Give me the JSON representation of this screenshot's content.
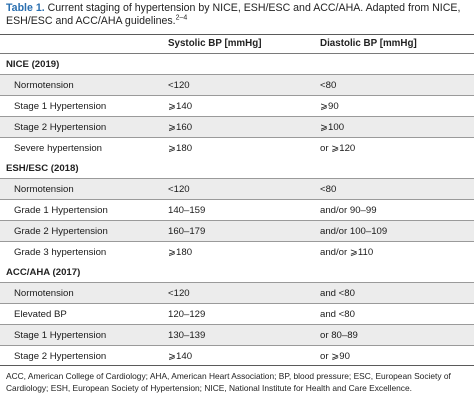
{
  "caption": {
    "label": "Table 1.",
    "text": "Current staging of hypertension by NICE, ESH/ESC and ACC/AHA. Adapted from NICE, ESH/ESC and ACC/AHA guidelines.",
    "refs": "2–4"
  },
  "columns": [
    "",
    "Systolic BP [mmHg]",
    "Diastolic BP [mmHg]"
  ],
  "groups": [
    {
      "title": "NICE (2019)",
      "rows": [
        {
          "stage": "Normotension",
          "systolic": "<120",
          "diastolic": "<80"
        },
        {
          "stage": "Stage 1 Hypertension",
          "systolic": "⩾140",
          "diastolic": "⩾90"
        },
        {
          "stage": "Stage 2 Hypertension",
          "systolic": "⩾160",
          "diastolic": "⩾100"
        },
        {
          "stage": "Severe hypertension",
          "systolic": "⩾180",
          "diastolic": "or ⩾120"
        }
      ]
    },
    {
      "title": "ESH/ESC (2018)",
      "rows": [
        {
          "stage": "Normotension",
          "systolic": "<120",
          "diastolic": "<80"
        },
        {
          "stage": "Grade 1 Hypertension",
          "systolic": "140–159",
          "diastolic": "and/or 90–99"
        },
        {
          "stage": "Grade 2 Hypertension",
          "systolic": "160–179",
          "diastolic": "and/or 100–109"
        },
        {
          "stage": "Grade 3 hypertension",
          "systolic": "⩾180",
          "diastolic": "and/or ⩾110"
        }
      ]
    },
    {
      "title": "ACC/AHA (2017)",
      "rows": [
        {
          "stage": "Normotension",
          "systolic": "<120",
          "diastolic": "and <80"
        },
        {
          "stage": "Elevated BP",
          "systolic": "120–129",
          "diastolic": "and <80"
        },
        {
          "stage": "Stage 1 Hypertension",
          "systolic": "130–139",
          "diastolic": "or 80–89"
        },
        {
          "stage": "Stage 2 Hypertension",
          "systolic": "⩾140",
          "diastolic": "or ⩾90"
        }
      ]
    }
  ],
  "footnote": "ACC, American College of Cardiology; AHA, American Heart Association; BP, blood pressure; ESC, European Society of Cardiology; ESH, European Society of Hypertension; NICE, National Institute for Health and Care Excellence.",
  "colors": {
    "caption_label": "#2a6fb0",
    "row_shade": "#ececec"
  }
}
